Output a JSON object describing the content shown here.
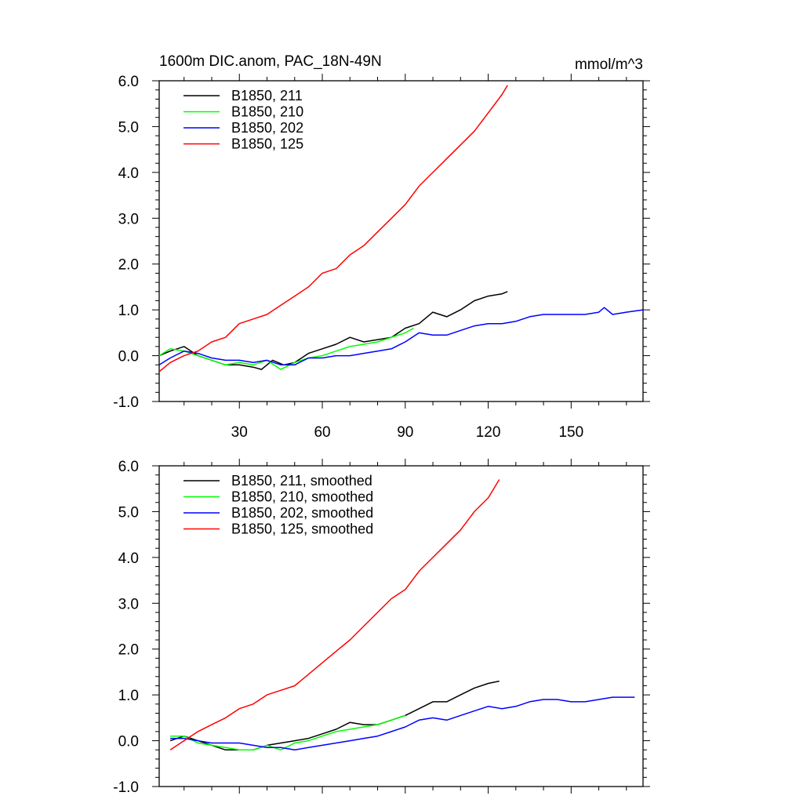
{
  "chart_data": [
    {
      "type": "line",
      "title": "1600m DIC.anom, PAC_18N-49N",
      "units": "mmol/m^3",
      "xlim": [
        1,
        176
      ],
      "ylim": [
        -1.0,
        6.0
      ],
      "yticks": [
        -1.0,
        0.0,
        1.0,
        2.0,
        3.0,
        4.0,
        5.0,
        6.0
      ],
      "ytick_labels": [
        "-1.0",
        "0.0",
        "1.0",
        "2.0",
        "3.0",
        "4.0",
        "5.0",
        "6.0"
      ],
      "xticks": [
        30,
        60,
        90,
        120,
        150
      ],
      "xtick_labels": [
        "30",
        "60",
        "90",
        "120",
        "150"
      ],
      "legend_placement": "top-left",
      "series": [
        {
          "name": "B1850, 211",
          "color": "#000000",
          "x": [
            1,
            5,
            10,
            15,
            20,
            25,
            30,
            35,
            38,
            42,
            46,
            50,
            55,
            60,
            65,
            70,
            75,
            80,
            85,
            90,
            95,
            100,
            105,
            110,
            115,
            120,
            125,
            127
          ],
          "y": [
            0.0,
            0.1,
            0.2,
            0.0,
            -0.1,
            -0.2,
            -0.2,
            -0.25,
            -0.3,
            -0.1,
            -0.2,
            -0.15,
            0.05,
            0.15,
            0.25,
            0.4,
            0.3,
            0.35,
            0.4,
            0.6,
            0.7,
            0.95,
            0.85,
            1.0,
            1.2,
            1.3,
            1.35,
            1.4
          ]
        },
        {
          "name": "B1850, 210",
          "color": "#00ff00",
          "x": [
            1,
            5,
            10,
            15,
            20,
            25,
            30,
            35,
            40,
            45,
            50,
            55,
            60,
            65,
            70,
            75,
            80,
            85,
            90,
            93
          ],
          "y": [
            0.0,
            0.15,
            0.1,
            0.0,
            -0.1,
            -0.2,
            -0.15,
            -0.2,
            -0.1,
            -0.3,
            -0.15,
            -0.05,
            0.0,
            0.1,
            0.2,
            0.25,
            0.3,
            0.4,
            0.5,
            0.6
          ]
        },
        {
          "name": "B1850, 202",
          "color": "#0000ff",
          "x": [
            1,
            5,
            10,
            15,
            20,
            25,
            30,
            35,
            40,
            45,
            50,
            55,
            60,
            65,
            70,
            75,
            80,
            85,
            90,
            95,
            100,
            105,
            110,
            115,
            120,
            125,
            130,
            135,
            140,
            145,
            150,
            155,
            160,
            162,
            165,
            170,
            176
          ],
          "y": [
            -0.2,
            -0.05,
            0.1,
            0.05,
            -0.05,
            -0.1,
            -0.1,
            -0.15,
            -0.1,
            -0.2,
            -0.2,
            -0.05,
            -0.05,
            0.0,
            0.0,
            0.05,
            0.1,
            0.15,
            0.3,
            0.5,
            0.45,
            0.45,
            0.55,
            0.65,
            0.7,
            0.7,
            0.75,
            0.85,
            0.9,
            0.9,
            0.9,
            0.9,
            0.95,
            1.05,
            0.9,
            0.95,
            1.0
          ]
        },
        {
          "name": "B1850, 125",
          "color": "#ff0000",
          "x": [
            1,
            5,
            10,
            15,
            20,
            25,
            30,
            35,
            40,
            45,
            50,
            55,
            60,
            65,
            70,
            75,
            80,
            85,
            90,
            95,
            100,
            105,
            110,
            115,
            120,
            125,
            127
          ],
          "y": [
            -0.35,
            -0.15,
            0.0,
            0.1,
            0.3,
            0.4,
            0.7,
            0.8,
            0.9,
            1.1,
            1.3,
            1.5,
            1.8,
            1.9,
            2.2,
            2.4,
            2.7,
            3.0,
            3.3,
            3.7,
            4.0,
            4.3,
            4.6,
            4.9,
            5.3,
            5.7,
            5.9
          ]
        }
      ]
    },
    {
      "type": "line",
      "xlim": [
        1,
        176
      ],
      "ylim": [
        -1.0,
        6.0
      ],
      "yticks": [
        -1.0,
        0.0,
        1.0,
        2.0,
        3.0,
        4.0,
        5.0,
        6.0
      ],
      "ytick_labels": [
        "-1.0",
        "0.0",
        "1.0",
        "2.0",
        "3.0",
        "4.0",
        "5.0",
        "6.0"
      ],
      "xticks": [
        30,
        60,
        90,
        120,
        150
      ],
      "legend_placement": "top-left",
      "series": [
        {
          "name": "B1850, 211, smoothed",
          "color": "#000000",
          "x": [
            5,
            10,
            15,
            20,
            25,
            30,
            35,
            40,
            45,
            50,
            55,
            60,
            65,
            70,
            75,
            80,
            85,
            90,
            95,
            100,
            105,
            110,
            115,
            120,
            124
          ],
          "y": [
            0.0,
            0.1,
            0.0,
            -0.1,
            -0.2,
            -0.2,
            -0.2,
            -0.1,
            -0.05,
            0.0,
            0.05,
            0.15,
            0.25,
            0.4,
            0.35,
            0.35,
            0.45,
            0.55,
            0.7,
            0.85,
            0.85,
            1.0,
            1.15,
            1.25,
            1.3
          ]
        },
        {
          "name": "B1850, 210, smoothed",
          "color": "#00ff00",
          "x": [
            5,
            10,
            15,
            20,
            25,
            30,
            35,
            40,
            45,
            50,
            55,
            60,
            65,
            70,
            75,
            80,
            85,
            90
          ],
          "y": [
            0.1,
            0.1,
            -0.05,
            -0.1,
            -0.15,
            -0.2,
            -0.2,
            -0.1,
            -0.2,
            -0.05,
            0.0,
            0.1,
            0.2,
            0.25,
            0.3,
            0.35,
            0.45,
            0.55
          ]
        },
        {
          "name": "B1850, 202, smoothed",
          "color": "#0000ff",
          "x": [
            5,
            10,
            15,
            20,
            25,
            30,
            35,
            40,
            45,
            50,
            55,
            60,
            65,
            70,
            75,
            80,
            85,
            90,
            95,
            100,
            105,
            110,
            115,
            120,
            125,
            130,
            135,
            140,
            145,
            150,
            155,
            160,
            165,
            170,
            173
          ],
          "y": [
            0.05,
            0.05,
            0.0,
            -0.05,
            -0.05,
            -0.05,
            -0.1,
            -0.15,
            -0.15,
            -0.2,
            -0.15,
            -0.1,
            -0.05,
            0.0,
            0.05,
            0.1,
            0.2,
            0.3,
            0.45,
            0.5,
            0.45,
            0.55,
            0.65,
            0.75,
            0.7,
            0.75,
            0.85,
            0.9,
            0.9,
            0.85,
            0.85,
            0.9,
            0.95,
            0.95,
            0.95
          ]
        },
        {
          "name": "B1850, 125, smoothed",
          "color": "#ff0000",
          "x": [
            5,
            10,
            15,
            20,
            25,
            30,
            35,
            40,
            45,
            50,
            55,
            60,
            65,
            70,
            75,
            80,
            85,
            90,
            95,
            100,
            105,
            110,
            115,
            120,
            124
          ],
          "y": [
            -0.2,
            0.0,
            0.2,
            0.35,
            0.5,
            0.7,
            0.8,
            1.0,
            1.1,
            1.2,
            1.45,
            1.7,
            1.95,
            2.2,
            2.5,
            2.8,
            3.1,
            3.3,
            3.7,
            4.0,
            4.3,
            4.6,
            5.0,
            5.3,
            5.7
          ]
        }
      ]
    }
  ]
}
